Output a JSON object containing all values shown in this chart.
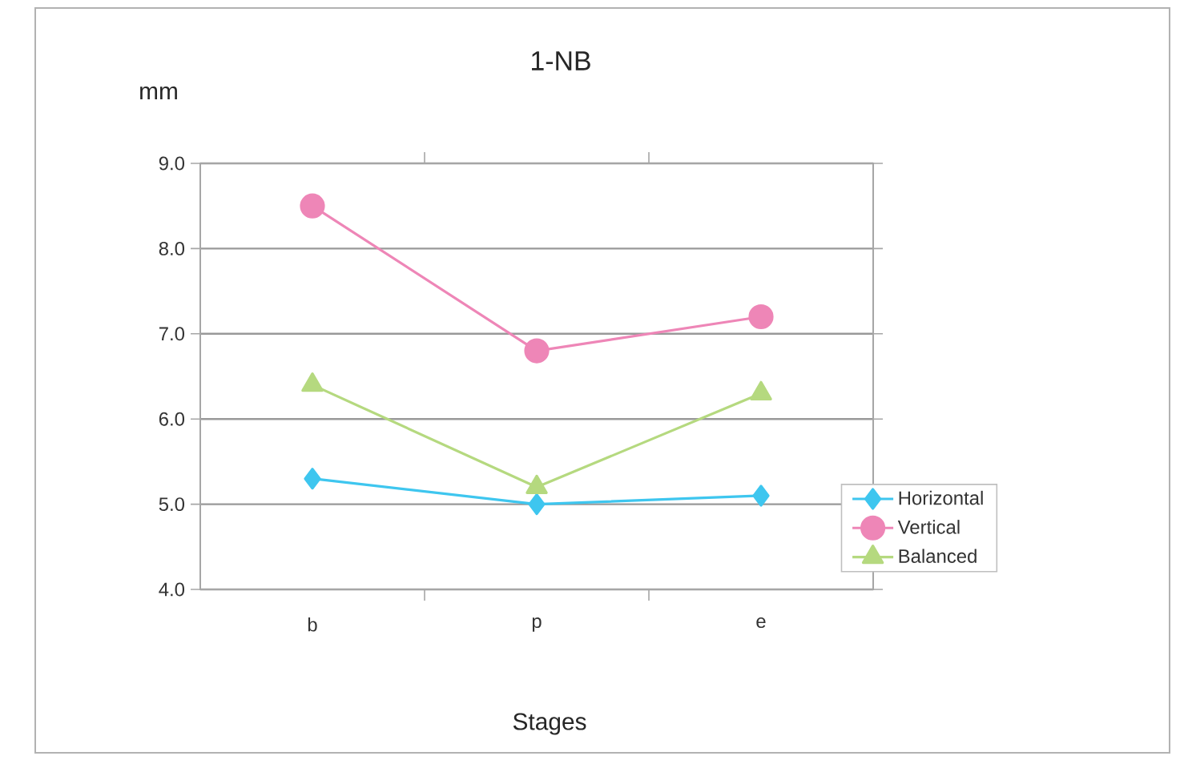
{
  "chart_data": {
    "type": "line",
    "title": "1-NB",
    "ylabel": "mm",
    "xlabel": "Stages",
    "categories": [
      "b",
      "p",
      "e"
    ],
    "series": [
      {
        "name": "Horizontal",
        "color": "#3ec6ef",
        "marker": "diamond",
        "values": [
          5.3,
          5.0,
          5.1
        ]
      },
      {
        "name": "Vertical",
        "color": "#ee86b7",
        "marker": "circle",
        "values": [
          8.5,
          6.8,
          7.2
        ]
      },
      {
        "name": "Balanced",
        "color": "#b5d97f",
        "marker": "triangle",
        "values": [
          6.4,
          5.2,
          6.3
        ]
      }
    ],
    "ylim": [
      4.0,
      9.0
    ],
    "yticks": [
      {
        "value": 4,
        "label": "4.0"
      },
      {
        "value": 5,
        "label": "5.0"
      },
      {
        "value": 6,
        "label": "6.0"
      },
      {
        "value": 7,
        "label": "7.0"
      },
      {
        "value": 8,
        "label": "8.0"
      },
      {
        "value": 9,
        "label": "9.0"
      }
    ],
    "grid": "y",
    "legend": "bottom right"
  }
}
